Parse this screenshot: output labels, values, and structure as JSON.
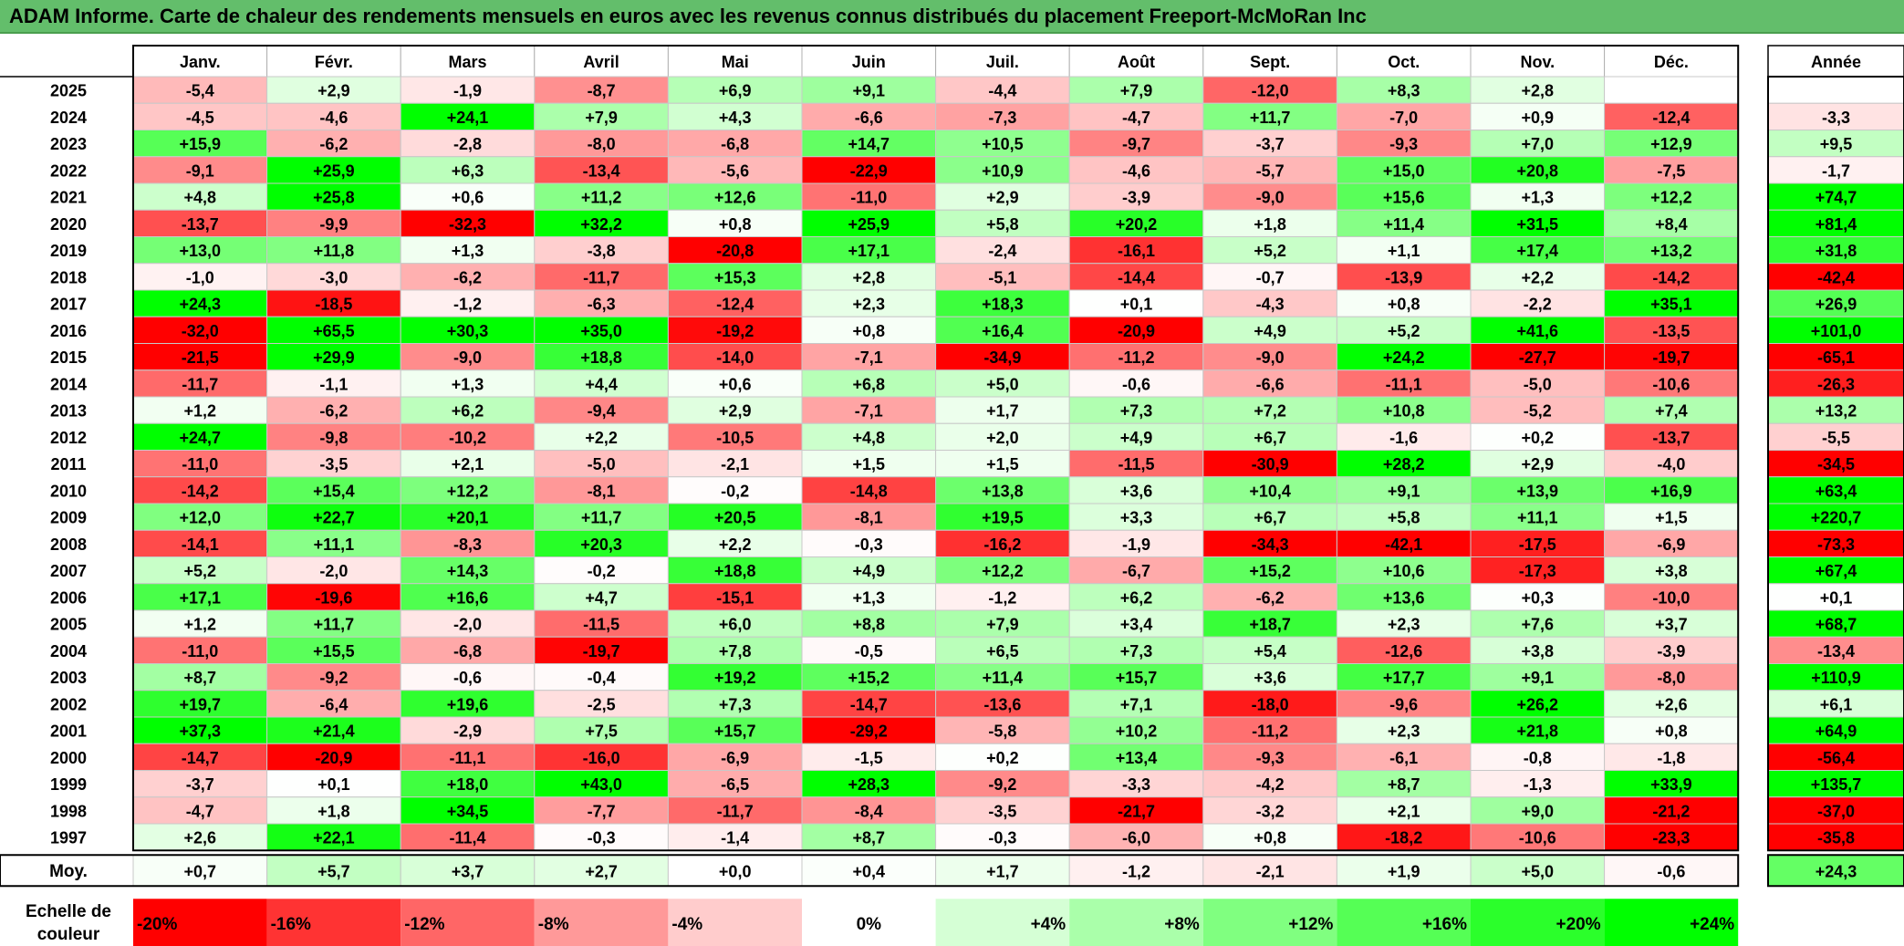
{
  "title": "ADAM Informe. Carte de chaleur des rendements mensuels en euros avec les revenus connus distribués du placement Freeport-McMoRan Inc",
  "chart_data": {
    "type": "heatmap",
    "months": [
      "Janv.",
      "Févr.",
      "Mars",
      "Avril",
      "Mai",
      "Juin",
      "Juil.",
      "Août",
      "Sept.",
      "Oct.",
      "Nov.",
      "Déc."
    ],
    "year_column_label": "Année",
    "rows": [
      {
        "year": "2025",
        "months": [
          "-5,4",
          "+2,9",
          "-1,9",
          "-8,7",
          "+6,9",
          "+9,1",
          "-4,4",
          "+7,9",
          "-12,0",
          "+8,3",
          "+2,8",
          ""
        ],
        "annual": ""
      },
      {
        "year": "2024",
        "months": [
          "-4,5",
          "-4,6",
          "+24,1",
          "+7,9",
          "+4,3",
          "-6,6",
          "-7,3",
          "-4,7",
          "+11,7",
          "-7,0",
          "+0,9",
          "-12,4"
        ],
        "annual": "-3,3"
      },
      {
        "year": "2023",
        "months": [
          "+15,9",
          "-6,2",
          "-2,8",
          "-8,0",
          "-6,8",
          "+14,7",
          "+10,5",
          "-9,7",
          "-3,7",
          "-9,3",
          "+7,0",
          "+12,9"
        ],
        "annual": "+9,5"
      },
      {
        "year": "2022",
        "months": [
          "-9,1",
          "+25,9",
          "+6,3",
          "-13,4",
          "-5,6",
          "-22,9",
          "+10,9",
          "-4,6",
          "-5,7",
          "+15,0",
          "+20,8",
          "-7,5"
        ],
        "annual": "-1,7"
      },
      {
        "year": "2021",
        "months": [
          "+4,8",
          "+25,8",
          "+0,6",
          "+11,2",
          "+12,6",
          "-11,0",
          "+2,9",
          "-3,9",
          "-9,0",
          "+15,6",
          "+1,3",
          "+12,2"
        ],
        "annual": "+74,7"
      },
      {
        "year": "2020",
        "months": [
          "-13,7",
          "-9,9",
          "-32,3",
          "+32,2",
          "+0,8",
          "+25,9",
          "+5,8",
          "+20,2",
          "+1,8",
          "+11,4",
          "+31,5",
          "+8,4"
        ],
        "annual": "+81,4"
      },
      {
        "year": "2019",
        "months": [
          "+13,0",
          "+11,8",
          "+1,3",
          "-3,8",
          "-20,8",
          "+17,1",
          "-2,4",
          "-16,1",
          "+5,2",
          "+1,1",
          "+17,4",
          "+13,2"
        ],
        "annual": "+31,8"
      },
      {
        "year": "2018",
        "months": [
          "-1,0",
          "-3,0",
          "-6,2",
          "-11,7",
          "+15,3",
          "+2,8",
          "-5,1",
          "-14,4",
          "-0,7",
          "-13,9",
          "+2,2",
          "-14,2"
        ],
        "annual": "-42,4"
      },
      {
        "year": "2017",
        "months": [
          "+24,3",
          "-18,5",
          "-1,2",
          "-6,3",
          "-12,4",
          "+2,3",
          "+18,3",
          "+0,1",
          "-4,3",
          "+0,8",
          "-2,2",
          "+35,1"
        ],
        "annual": "+26,9"
      },
      {
        "year": "2016",
        "months": [
          "-32,0",
          "+65,5",
          "+30,3",
          "+35,0",
          "-19,2",
          "+0,8",
          "+16,4",
          "-20,9",
          "+4,9",
          "+5,2",
          "+41,6",
          "-13,5"
        ],
        "annual": "+101,0"
      },
      {
        "year": "2015",
        "months": [
          "-21,5",
          "+29,9",
          "-9,0",
          "+18,8",
          "-14,0",
          "-7,1",
          "-34,9",
          "-11,2",
          "-9,0",
          "+24,2",
          "-27,7",
          "-19,7"
        ],
        "annual": "-65,1"
      },
      {
        "year": "2014",
        "months": [
          "-11,7",
          "-1,1",
          "+1,3",
          "+4,4",
          "+0,6",
          "+6,8",
          "+5,0",
          "-0,6",
          "-6,6",
          "-11,1",
          "-5,0",
          "-10,6"
        ],
        "annual": "-26,3"
      },
      {
        "year": "2013",
        "months": [
          "+1,2",
          "-6,2",
          "+6,2",
          "-9,4",
          "+2,9",
          "-7,1",
          "+1,7",
          "+7,3",
          "+7,2",
          "+10,8",
          "-5,2",
          "+7,4"
        ],
        "annual": "+13,2"
      },
      {
        "year": "2012",
        "months": [
          "+24,7",
          "-9,8",
          "-10,2",
          "+2,2",
          "-10,5",
          "+4,8",
          "+2,0",
          "+4,9",
          "+6,7",
          "-1,6",
          "+0,2",
          "-13,7"
        ],
        "annual": "-5,5"
      },
      {
        "year": "2011",
        "months": [
          "-11,0",
          "-3,5",
          "+2,1",
          "-5,0",
          "-2,1",
          "+1,5",
          "+1,5",
          "-11,5",
          "-30,9",
          "+28,2",
          "+2,9",
          "-4,0"
        ],
        "annual": "-34,5"
      },
      {
        "year": "2010",
        "months": [
          "-14,2",
          "+15,4",
          "+12,2",
          "-8,1",
          "-0,2",
          "-14,8",
          "+13,8",
          "+3,6",
          "+10,4",
          "+9,1",
          "+13,9",
          "+16,9"
        ],
        "annual": "+63,4"
      },
      {
        "year": "2009",
        "months": [
          "+12,0",
          "+22,7",
          "+20,1",
          "+11,7",
          "+20,5",
          "-8,1",
          "+19,5",
          "+3,3",
          "+6,7",
          "+5,8",
          "+11,1",
          "+1,5"
        ],
        "annual": "+220,7"
      },
      {
        "year": "2008",
        "months": [
          "-14,1",
          "+11,1",
          "-8,3",
          "+20,3",
          "+2,2",
          "-0,3",
          "-16,2",
          "-1,9",
          "-34,3",
          "-42,1",
          "-17,5",
          "-6,9"
        ],
        "annual": "-73,3"
      },
      {
        "year": "2007",
        "months": [
          "+5,2",
          "-2,0",
          "+14,3",
          "-0,2",
          "+18,8",
          "+4,9",
          "+12,2",
          "-6,7",
          "+15,2",
          "+10,6",
          "-17,3",
          "+3,8"
        ],
        "annual": "+67,4"
      },
      {
        "year": "2006",
        "months": [
          "+17,1",
          "-19,6",
          "+16,6",
          "+4,7",
          "-15,1",
          "+1,3",
          "-1,2",
          "+6,2",
          "-6,2",
          "+13,6",
          "+0,3",
          "-10,0"
        ],
        "annual": "+0,1"
      },
      {
        "year": "2005",
        "months": [
          "+1,2",
          "+11,7",
          "-2,0",
          "-11,5",
          "+6,0",
          "+8,8",
          "+7,9",
          "+3,4",
          "+18,7",
          "+2,3",
          "+7,6",
          "+3,7"
        ],
        "annual": "+68,7"
      },
      {
        "year": "2004",
        "months": [
          "-11,0",
          "+15,5",
          "-6,8",
          "-19,7",
          "+7,8",
          "-0,5",
          "+6,5",
          "+7,3",
          "+5,4",
          "-12,6",
          "+3,8",
          "-3,9"
        ],
        "annual": "-13,4"
      },
      {
        "year": "2003",
        "months": [
          "+8,7",
          "-9,2",
          "-0,6",
          "-0,4",
          "+19,2",
          "+15,2",
          "+11,4",
          "+15,7",
          "+3,6",
          "+17,7",
          "+9,1",
          "-8,0"
        ],
        "annual": "+110,9"
      },
      {
        "year": "2002",
        "months": [
          "+19,7",
          "-6,4",
          "+19,6",
          "-2,5",
          "+7,3",
          "-14,7",
          "-13,6",
          "+7,1",
          "-18,0",
          "-9,6",
          "+26,2",
          "+2,6"
        ],
        "annual": "+6,1"
      },
      {
        "year": "2001",
        "months": [
          "+37,3",
          "+21,4",
          "-2,9",
          "+7,5",
          "+15,7",
          "-29,2",
          "-5,8",
          "+10,2",
          "-11,2",
          "+2,3",
          "+21,8",
          "+0,8"
        ],
        "annual": "+64,9"
      },
      {
        "year": "2000",
        "months": [
          "-14,7",
          "-20,9",
          "-11,1",
          "-16,0",
          "-6,9",
          "-1,5",
          "+0,2",
          "+13,4",
          "-9,3",
          "-6,1",
          "-0,8",
          "-1,8"
        ],
        "annual": "-56,4"
      },
      {
        "year": "1999",
        "months": [
          "-3,7",
          "+0,1",
          "+18,0",
          "+43,0",
          "-6,5",
          "+28,3",
          "-9,2",
          "-3,3",
          "-4,2",
          "+8,7",
          "-1,3",
          "+33,9"
        ],
        "annual": "+135,7"
      },
      {
        "year": "1998",
        "months": [
          "-4,7",
          "+1,8",
          "+34,5",
          "-7,7",
          "-11,7",
          "-8,4",
          "-3,5",
          "-21,7",
          "-3,2",
          "+2,1",
          "+9,0",
          "-21,2"
        ],
        "annual": "-37,0"
      },
      {
        "year": "1997",
        "months": [
          "+2,6",
          "+22,1",
          "-11,4",
          "-0,3",
          "-1,4",
          "+8,7",
          "-0,3",
          "-6,0",
          "+0,8",
          "-18,2",
          "-10,6",
          "-23,3"
        ],
        "annual": "-35,8"
      }
    ],
    "average": {
      "label": "Moy.",
      "months": [
        "+0,7",
        "+5,7",
        "+3,7",
        "+2,7",
        "+0,0",
        "+0,4",
        "+1,7",
        "-1,2",
        "-2,1",
        "+1,9",
        "+5,0",
        "-0,6"
      ],
      "annual": "+24,3"
    },
    "color_scale": {
      "label_line1": "Echelle de",
      "label_line2": "couleur",
      "stops": [
        {
          "label": "-20%",
          "value": -20
        },
        {
          "label": "-16%",
          "value": -16
        },
        {
          "label": "-12%",
          "value": -12
        },
        {
          "label": "-8%",
          "value": -8
        },
        {
          "label": "-4%",
          "value": -4
        },
        {
          "label": "0%",
          "value": 0
        },
        {
          "label": "+4%",
          "value": 4
        },
        {
          "label": "+8%",
          "value": 8
        },
        {
          "label": "+12%",
          "value": 12
        },
        {
          "label": "+16%",
          "value": 16
        },
        {
          "label": "+20%",
          "value": 20
        },
        {
          "label": "+24%",
          "value": 24
        }
      ]
    },
    "colors": {
      "negative_max": "#ff0000",
      "neutral": "#ffffff",
      "positive_max": "#00ff00",
      "title_bar": "#63be6b"
    }
  }
}
